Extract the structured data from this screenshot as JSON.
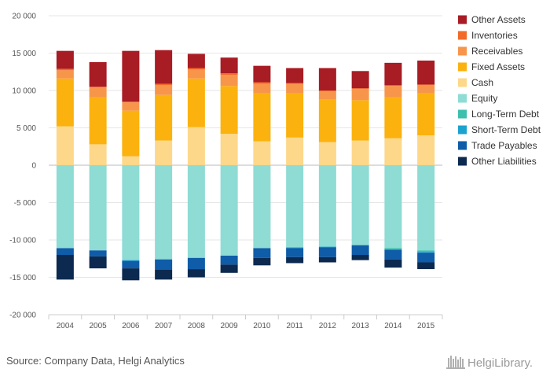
{
  "source": "Source: Company Data, Helgi Analytics",
  "logo_text": "HelgiLibrary.",
  "chart_data": {
    "type": "bar",
    "stacked": true,
    "categories": [
      "2004",
      "2005",
      "2006",
      "2007",
      "2008",
      "2009",
      "2010",
      "2011",
      "2012",
      "2013",
      "2014",
      "2015"
    ],
    "ylim": [
      -20000,
      20000
    ],
    "yticks": [
      20000,
      15000,
      10000,
      5000,
      0,
      -5000,
      -10000,
      -15000,
      -20000
    ],
    "ytick_labels": [
      "20 000",
      "15 000",
      "10 000",
      "5 000",
      "0",
      "-5 000",
      "-10 000",
      "-15 000",
      "-20 000"
    ],
    "grid": true,
    "legend_position": "right",
    "series": [
      {
        "name": "Other Assets",
        "side": "assets",
        "color": "#a81c24",
        "values": [
          2400,
          3300,
          6800,
          4500,
          1900,
          2100,
          2200,
          2000,
          3000,
          2300,
          3000,
          3200
        ]
      },
      {
        "name": "Inventories",
        "side": "assets",
        "color": "#f26a2a",
        "values": [
          200,
          100,
          100,
          200,
          200,
          200,
          200,
          100,
          100,
          100,
          100,
          100
        ]
      },
      {
        "name": "Receivables",
        "side": "assets",
        "color": "#f7964a",
        "values": [
          1100,
          1300,
          1100,
          1300,
          1200,
          1500,
          1300,
          1300,
          1100,
          1500,
          1500,
          1100
        ]
      },
      {
        "name": "Fixed Assets",
        "side": "assets",
        "color": "#fbb20f",
        "values": [
          6400,
          6300,
          6100,
          6100,
          6500,
          6400,
          6400,
          5900,
          5700,
          5400,
          5500,
          5600
        ]
      },
      {
        "name": "Cash",
        "side": "assets",
        "color": "#fdd88a",
        "values": [
          5200,
          2800,
          1200,
          3300,
          5100,
          4200,
          3200,
          3700,
          3100,
          3300,
          3600,
          4000
        ]
      },
      {
        "name": "Equity",
        "side": "liabilities",
        "color": "#8edcd4",
        "values": [
          11100,
          11400,
          12700,
          12600,
          12400,
          12100,
          11100,
          11000,
          10900,
          10700,
          11100,
          11400
        ]
      },
      {
        "name": "Long-Term Debt",
        "side": "liabilities",
        "color": "#3dbfae",
        "values": [
          0,
          0,
          0,
          0,
          0,
          0,
          0,
          0,
          0,
          0,
          200,
          200
        ]
      },
      {
        "name": "Short-Term Debt",
        "side": "liabilities",
        "color": "#1ba2cf",
        "values": [
          0,
          0,
          100,
          0,
          0,
          0,
          0,
          100,
          100,
          0,
          0,
          100
        ]
      },
      {
        "name": "Trade Payables",
        "side": "liabilities",
        "color": "#0f5ca8",
        "values": [
          900,
          800,
          1000,
          1400,
          1500,
          1200,
          1300,
          1200,
          1300,
          1300,
          1300,
          1300
        ]
      },
      {
        "name": "Other Liabilities",
        "side": "liabilities",
        "color": "#0c2a50",
        "values": [
          3300,
          1600,
          1600,
          1300,
          1100,
          1100,
          1000,
          800,
          700,
          700,
          1100,
          900
        ]
      }
    ]
  }
}
